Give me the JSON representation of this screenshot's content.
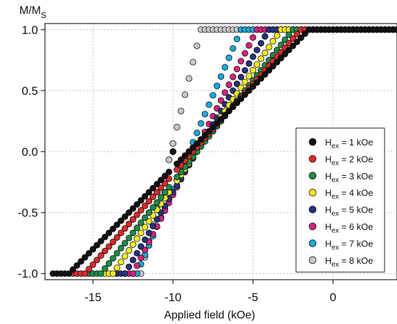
{
  "chart_data": {
    "type": "scatter",
    "ylabel": {
      "main": "M/M",
      "sub": "S"
    },
    "xlabel": "Applied field (kOe)",
    "xlim": [
      -18,
      4
    ],
    "ylim": [
      -1.05,
      1.05
    ],
    "xticks": [
      -15,
      -10,
      -5,
      0
    ],
    "xtick_labels": [
      "-15",
      "-10",
      "-5",
      "0"
    ],
    "yticks": [
      -1.0,
      -0.5,
      0.0,
      0.5,
      1.0
    ],
    "ytick_labels": [
      "-1.0",
      "-0.5",
      "0.0",
      "0.5",
      "1.0"
    ],
    "grid": true,
    "legend_position": "lower-right",
    "x_step": 0.25,
    "series": [
      {
        "name": {
          "pre": "H",
          "sub": "ex",
          "post": " = 1 kOe"
        },
        "color": "#111111",
        "x_start": -17.5,
        "x_end": 4,
        "knee_low": -16.5,
        "knee_high": -1.5,
        "switch_lo": -10.0,
        "switch_hi": -10.0
      },
      {
        "name": {
          "pre": "H",
          "sub": "ex",
          "post": " = 2 kOe"
        },
        "color": "#d92b2b",
        "x_start": -16.25,
        "x_end": 4,
        "knee_low": -15.5,
        "knee_high": -2.0,
        "switch_lo": -10.0,
        "switch_hi": -10.0
      },
      {
        "name": {
          "pre": "H",
          "sub": "ex",
          "post": " = 3 kOe"
        },
        "color": "#1e8b4a",
        "x_start": -15.25,
        "x_end": 4,
        "knee_low": -14.5,
        "knee_high": -2.5,
        "switch_lo": -10.0,
        "switch_hi": -10.0
      },
      {
        "name": {
          "pre": "H",
          "sub": "ex",
          "post": " = 4 kOe"
        },
        "color": "#f5ec1a",
        "x_start": -14.25,
        "x_end": 4,
        "knee_low": -13.75,
        "knee_high": -3.25,
        "switch_lo": -10.0,
        "switch_hi": -10.0
      },
      {
        "name": {
          "pre": "H",
          "sub": "ex",
          "post": " = 5 kOe"
        },
        "color": "#26307e",
        "x_start": -13.5,
        "x_end": 4,
        "knee_low": -13.0,
        "knee_high": -4.0,
        "switch_lo": -10.5,
        "switch_hi": -9.5
      },
      {
        "name": {
          "pre": "H",
          "sub": "ex",
          "post": " = 6 kOe"
        },
        "color": "#d4237d",
        "x_start": -13.0,
        "x_end": 4,
        "knee_low": -12.5,
        "knee_high": -4.75,
        "switch_lo": -10.75,
        "switch_hi": -9.25
      },
      {
        "name": {
          "pre": "H",
          "sub": "ex",
          "post": " = 7 kOe"
        },
        "color": "#1ba8dd",
        "x_start": -12.5,
        "x_end": 4,
        "knee_low": -12.25,
        "knee_high": -5.75,
        "switch_lo": -11.0,
        "switch_hi": -9.0
      },
      {
        "name": {
          "pre": "H",
          "sub": "ex",
          "post": " = 8 kOe"
        },
        "color": "#c8c8c8",
        "x_start": -12.25,
        "x_end": 4,
        "knee_low": -12.0,
        "knee_high": -8.25,
        "switch_lo": -11.0,
        "switch_hi": -9.5
      }
    ]
  }
}
